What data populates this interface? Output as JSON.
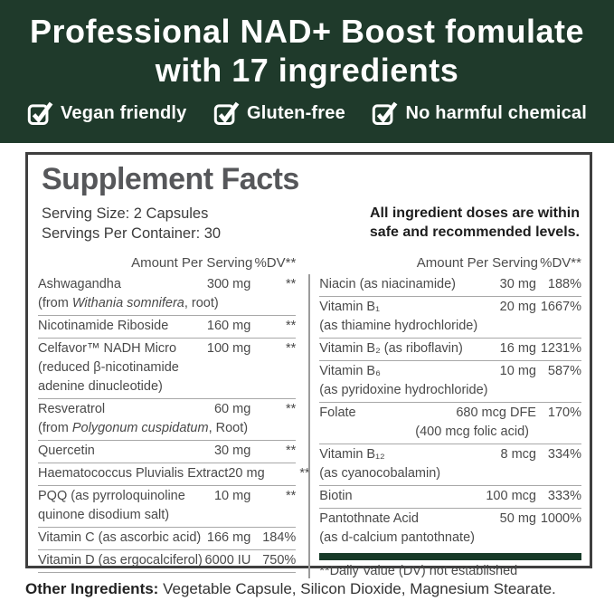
{
  "colors": {
    "hero_background": "#1f3a2b",
    "table_bar_green": "#173a28",
    "body_text_gray": "#4a4a4a",
    "separator_gray": "#a8a8a8"
  },
  "header": {
    "title_line1": "Professional NAD+ Boost fomulate",
    "title_line2": "with 17 ingredients",
    "badges": [
      {
        "icon": "checkbox-checked-icon",
        "label": "Vegan friendly"
      },
      {
        "icon": "checkbox-checked-icon",
        "label": "Gluten-free"
      },
      {
        "icon": "checkbox-checked-icon",
        "label": "No harmful chemical"
      }
    ]
  },
  "panel": {
    "title": "Supplement Facts",
    "serving_size": "Serving Size: 2 Capsules",
    "servings_per_container": "Servings Per Container: 30",
    "note_line1": "All ingredient doses are within",
    "note_line2": "safe and recommended levels.",
    "column_header": {
      "amount": "Amount Per Serving",
      "dv": "%DV**"
    },
    "left_rows": [
      {
        "name": "Ashwagandha",
        "amount": "300 mg",
        "dv": "**",
        "sub": [
          {
            "pre": "(from ",
            "italic": "Withania somnifera",
            "post": ", root)"
          }
        ]
      },
      {
        "name": "Nicotinamide Riboside",
        "amount": "160 mg",
        "dv": "**"
      },
      {
        "name": "Celfavor™ NADH Micro",
        "amount": "100 mg",
        "dv": "**",
        "sub": [
          {
            "pre": "(reduced β-nicotinamide"
          },
          {
            "pre": "adenine dinucleotide)"
          }
        ]
      },
      {
        "name": "Resveratrol",
        "amount": "60 mg",
        "dv": "**",
        "sub": [
          {
            "pre": "(from ",
            "italic": "Polygonum cuspidatum",
            "post": ", Root)"
          }
        ]
      },
      {
        "name": "Quercetin",
        "amount": "30 mg",
        "dv": "**"
      },
      {
        "name": "Haematococcus Pluvialis Extract",
        "amount": "20 mg",
        "dv": "**"
      },
      {
        "name": "PQQ (as pyrroloquinoline",
        "amount": "10 mg",
        "dv": "**",
        "sub": [
          {
            "pre": "quinone disodium salt)"
          }
        ]
      },
      {
        "name": "Vitamin C (as ascorbic acid)",
        "amount": "166 mg",
        "dv": "184%"
      },
      {
        "name": "Vitamin D (as ergocalciferol)",
        "amount": "6000 IU",
        "dv": "750%"
      }
    ],
    "right_rows": [
      {
        "name": "Niacin (as niacinamide)",
        "amount": "30 mg",
        "dv": "188%"
      },
      {
        "name": "Vitamin B₁",
        "amount": "20 mg",
        "dv": "1667%",
        "sub": [
          {
            "pre": "(as thiamine hydrochloride)"
          }
        ]
      },
      {
        "name": "Vitamin B₂ (as riboflavin)",
        "amount": "16 mg",
        "dv": "1231%"
      },
      {
        "name": "Vitamin B₆",
        "amount": "10 mg",
        "dv": "587%",
        "sub": [
          {
            "pre": "(as pyridoxine hydrochloride)"
          }
        ]
      },
      {
        "name": "Folate",
        "amount": "680 mcg DFE",
        "dv": "170%",
        "sub": [
          {
            "pre": "(400 mcg folic acid)",
            "align": "amount"
          }
        ]
      },
      {
        "name": "Vitamin B₁₂",
        "amount": "8 mcg",
        "dv": "334%",
        "sub": [
          {
            "pre": "(as cyanocobalamin)"
          }
        ]
      },
      {
        "name": "Biotin",
        "amount": "100 mcg",
        "dv": "333%"
      },
      {
        "name": "Pantothnate Acid",
        "amount": "50 mg",
        "dv": "1000%",
        "sub": [
          {
            "pre": "(as d-calcium pantothnate)"
          }
        ]
      }
    ],
    "footnote": "**Daily Value (DV) not established"
  },
  "other_ingredients": {
    "label": "Other Ingredients:",
    "text": " Vegetable Capsule, Silicon Dioxide, Magnesium Stearate."
  }
}
